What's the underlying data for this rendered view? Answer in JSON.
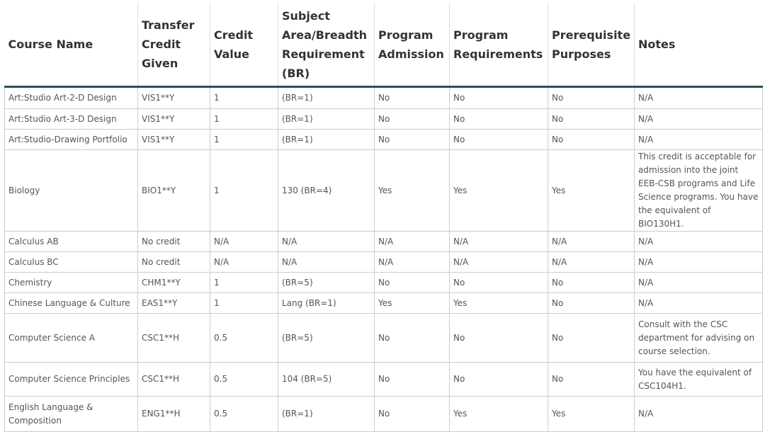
{
  "table": {
    "header": [
      "Course Name",
      "Transfer Credit Given",
      "Credit Value",
      "Subject Area/Breadth Requirement (BR)",
      "Program Admission",
      "Program Requirements",
      "Prerequisite Purposes",
      "Notes"
    ],
    "rows": [
      [
        "Art:Studio Art-2-D Design",
        "VIS1**Y",
        "1",
        "(BR=1)",
        "No",
        "No",
        "No",
        "N/A"
      ],
      [
        "Art:Studio Art-3-D Design",
        "VIS1**Y",
        "1",
        "(BR=1)",
        "No",
        "No",
        "No",
        "N/A"
      ],
      [
        "Art:Studio-Drawing Portfolio",
        "VIS1**Y",
        "1",
        "(BR=1)",
        "No",
        "No",
        "No",
        "N/A"
      ],
      [
        "Biology",
        "BIO1**Y",
        "1",
        "130 (BR=4)",
        "Yes",
        "Yes",
        "Yes",
        "This credit is acceptable for admission into the joint EEB-CSB programs and Life Science programs. You have the equivalent of BIO130H1."
      ],
      [
        "Calculus AB",
        "No credit",
        "N/A",
        "N/A",
        "N/A",
        "N/A",
        "N/A",
        "N/A"
      ],
      [
        "Calculus BC",
        "No credit",
        "N/A",
        "N/A",
        "N/A",
        "N/A",
        "N/A",
        "N/A"
      ],
      [
        "Chemistry",
        "CHM1**Y",
        "1",
        "(BR=5)",
        "No",
        "No",
        "No",
        "N/A"
      ],
      [
        "Chinese Language & Culture",
        "EAS1**Y",
        "1",
        "Lang (BR=1)",
        "Yes",
        "Yes",
        "No",
        "N/A"
      ],
      [
        "Computer Science A",
        "CSC1**H",
        "0.5",
        "(BR=5)",
        "No",
        "No",
        "No",
        "Consult with the CSC department for advising on course selection."
      ],
      [
        "Computer Science Principles",
        "CSC1**H",
        "0.5",
        "104 (BR=5)",
        "No",
        "No",
        "No",
        "You have the equivalent of CSC104H1."
      ],
      [
        "English Language & Composition",
        "ENG1**H",
        "0.5",
        "(BR=1)",
        "No",
        "Yes",
        "Yes",
        "N/A"
      ]
    ]
  }
}
